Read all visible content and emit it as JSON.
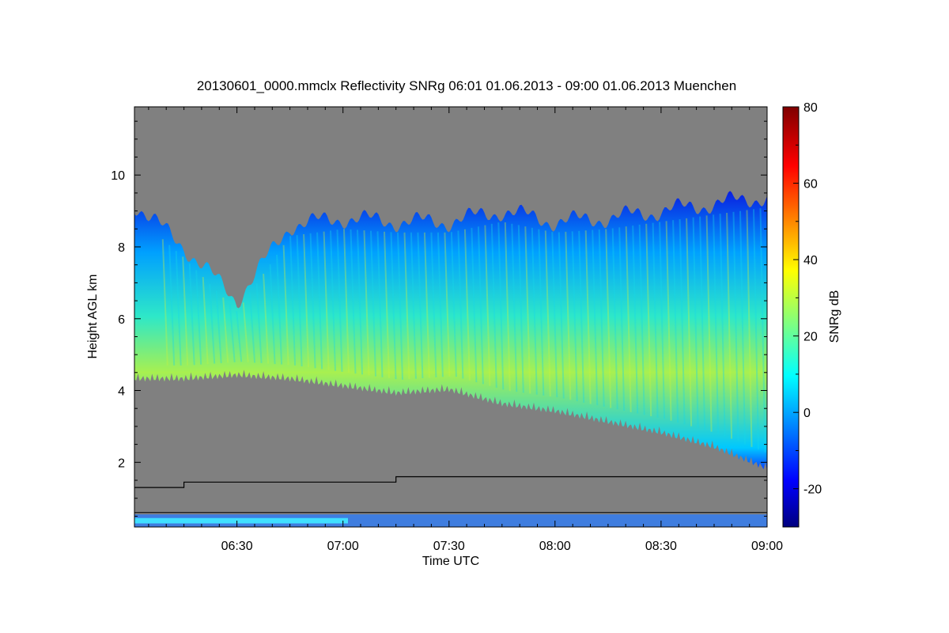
{
  "chart_data": {
    "type": "heatmap",
    "title": "20130601_0000.mmclx Reflectivity SNRg   06:01 01.06.2013 - 09:00 01.06.2013 Muenchen",
    "xlabel": "Time UTC",
    "ylabel": "Height AGL km",
    "colorbar_label": "SNRg dB",
    "x_range": [
      "06:01",
      "09:00"
    ],
    "x_ticks": [
      "06:30",
      "07:00",
      "07:30",
      "08:00",
      "08:30",
      "09:00"
    ],
    "ylim": [
      0.2,
      11.9
    ],
    "y_ticks": [
      2,
      4,
      6,
      8,
      10
    ],
    "colorbar_range": [
      -30,
      80
    ],
    "colorbar_ticks": [
      -20,
      0,
      20,
      40,
      60,
      80
    ],
    "colormap": "jet",
    "missing_color": "#808080",
    "cloud_layer": {
      "time": [
        "06:01",
        "06:15",
        "06:30",
        "06:45",
        "07:00",
        "07:15",
        "07:30",
        "07:45",
        "08:00",
        "08:15",
        "08:30",
        "08:45",
        "09:00"
      ],
      "base_km": [
        4.5,
        4.5,
        4.6,
        4.5,
        4.3,
        4.1,
        4.2,
        3.8,
        3.6,
        3.3,
        3.0,
        2.6,
        2.0
      ],
      "top_km": [
        9.2,
        8.0,
        6.5,
        8.6,
        8.8,
        8.7,
        8.7,
        9.0,
        8.7,
        8.8,
        9.0,
        9.2,
        9.4
      ]
    },
    "boundary_line": {
      "time": [
        "06:01",
        "06:15",
        "06:15",
        "07:15",
        "07:15",
        "09:00"
      ],
      "height_km": [
        1.3,
        1.3,
        1.45,
        1.45,
        1.6,
        1.6
      ]
    },
    "lower_line_height_km": 0.6
  }
}
